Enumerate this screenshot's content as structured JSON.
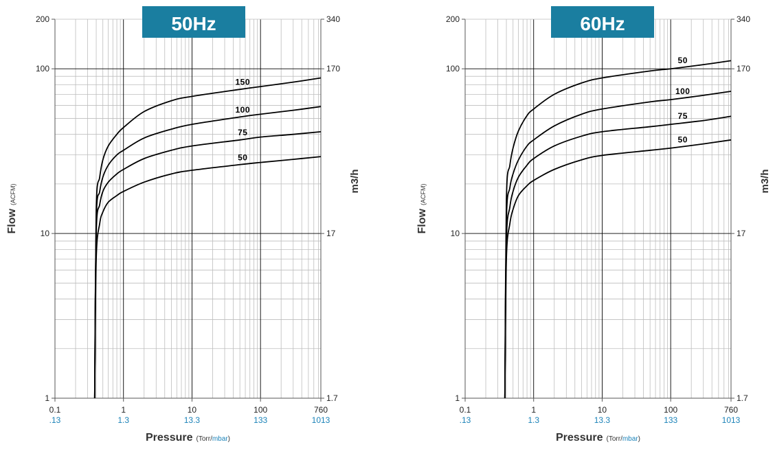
{
  "chart_data": [
    {
      "type": "line",
      "title": "50Hz",
      "xlabel": "Pressure",
      "xlabel_unit_torr": "Torr",
      "xlabel_unit_sep": "/",
      "xlabel_unit_mbar": "mbar",
      "ylabel": "Flow",
      "ylabel_unit": "(ACFM)",
      "y2label": "m3/h",
      "x_scale": "log",
      "y_scale": "log",
      "xlim": [
        0.1,
        760
      ],
      "ylim": [
        1,
        200
      ],
      "x_ticks": [
        {
          "value": 0.1,
          "label": "0.1",
          "label2": ".13"
        },
        {
          "value": 1,
          "label": "1",
          "label2": "1.3"
        },
        {
          "value": 10,
          "label": "10",
          "label2": "13.3"
        },
        {
          "value": 100,
          "label": "100",
          "label2": "133"
        },
        {
          "value": 760,
          "label": "760",
          "label2": "1013"
        }
      ],
      "y_ticks": [
        {
          "value": 1,
          "label": "1",
          "label2": "1.7"
        },
        {
          "value": 10,
          "label": "10",
          "label2": "17"
        },
        {
          "value": 100,
          "label": "100",
          "label2": "170"
        },
        {
          "value": 200,
          "label": "200",
          "label2": "340"
        }
      ],
      "grid": true,
      "series": [
        {
          "name": "150",
          "x": [
            0.38,
            0.4,
            0.45,
            0.5,
            0.6,
            0.8,
            1,
            2,
            5,
            10,
            50,
            100,
            300,
            760
          ],
          "y": [
            1,
            14,
            22,
            28,
            34,
            40,
            44,
            55,
            64,
            68,
            75,
            78,
            83,
            88
          ]
        },
        {
          "name": "100",
          "x": [
            0.38,
            0.4,
            0.45,
            0.5,
            0.6,
            0.8,
            1,
            2,
            5,
            10,
            50,
            100,
            300,
            760
          ],
          "y": [
            1,
            12,
            18,
            22,
            26,
            30,
            32,
            38,
            43,
            46,
            51,
            53,
            56,
            59
          ]
        },
        {
          "name": "75",
          "x": [
            0.38,
            0.4,
            0.45,
            0.5,
            0.6,
            0.8,
            1,
            2,
            5,
            10,
            50,
            100,
            300,
            760
          ],
          "y": [
            1,
            10,
            15,
            18,
            20.5,
            23,
            24.5,
            28.5,
            32,
            34,
            37,
            38.5,
            40,
            41.5
          ]
        },
        {
          "name": "50",
          "x": [
            0.38,
            0.4,
            0.45,
            0.5,
            0.6,
            0.8,
            1,
            2,
            5,
            10,
            50,
            100,
            300,
            760
          ],
          "y": [
            1,
            7,
            11.5,
            13.5,
            15.5,
            17,
            18,
            20.5,
            23,
            24.2,
            26.2,
            27,
            28.2,
            29.3
          ]
        }
      ]
    },
    {
      "type": "line",
      "title": "60Hz",
      "xlabel": "Pressure",
      "xlabel_unit_torr": "Torr",
      "xlabel_unit_sep": "/",
      "xlabel_unit_mbar": "mbar",
      "ylabel": "Flow",
      "ylabel_unit": "(ACFM)",
      "y2label": "m3/h",
      "x_scale": "log",
      "y_scale": "log",
      "xlim": [
        0.1,
        760
      ],
      "ylim": [
        1,
        200
      ],
      "x_ticks": [
        {
          "value": 0.1,
          "label": "0.1",
          "label2": ".13"
        },
        {
          "value": 1,
          "label": "1",
          "label2": "1.3"
        },
        {
          "value": 10,
          "label": "10",
          "label2": "13.3"
        },
        {
          "value": 100,
          "label": "100",
          "label2": "133"
        },
        {
          "value": 760,
          "label": "760",
          "label2": "1013"
        }
      ],
      "y_ticks": [
        {
          "value": 1,
          "label": "1",
          "label2": "1.7"
        },
        {
          "value": 10,
          "label": "10",
          "label2": "17"
        },
        {
          "value": 100,
          "label": "100",
          "label2": "170"
        },
        {
          "value": 200,
          "label": "200",
          "label2": "340"
        }
      ],
      "grid": true,
      "series": [
        {
          "name": "50",
          "x": [
            0.38,
            0.4,
            0.45,
            0.5,
            0.6,
            0.8,
            1,
            2,
            5,
            10,
            50,
            100,
            300,
            760
          ],
          "y": [
            1,
            16,
            26,
            33,
            42,
            52,
            57,
            70,
            82,
            88,
            97,
            100,
            106,
            112
          ]
        },
        {
          "name": "100",
          "x": [
            0.38,
            0.4,
            0.45,
            0.5,
            0.6,
            0.8,
            1,
            2,
            5,
            10,
            50,
            100,
            300,
            760
          ],
          "y": [
            1,
            12,
            19,
            23,
            28,
            34,
            37,
            45,
            53,
            57,
            63,
            65,
            69,
            73
          ]
        },
        {
          "name": "75",
          "x": [
            0.38,
            0.4,
            0.45,
            0.5,
            0.6,
            0.8,
            1,
            2,
            5,
            10,
            50,
            100,
            300,
            760
          ],
          "y": [
            1,
            9,
            14.5,
            18,
            22,
            26,
            28.5,
            34,
            39,
            41.5,
            44.5,
            46,
            48.5,
            51.5
          ]
        },
        {
          "name": "50",
          "x": [
            0.38,
            0.4,
            0.45,
            0.5,
            0.6,
            0.8,
            1,
            2,
            5,
            10,
            50,
            100,
            300,
            760
          ],
          "y": [
            1,
            7,
            11.5,
            14,
            17,
            19.5,
            21,
            24.5,
            28,
            29.8,
            32,
            33,
            35,
            37
          ]
        }
      ]
    }
  ],
  "colors": {
    "title_bg": "#1a7ea0",
    "title_fg": "#ffffff",
    "mbar_text": "#1a82b8",
    "curve": "#000000",
    "grid_minor": "#bdbdbd",
    "grid_major": "#000000",
    "axis": "#555555"
  }
}
